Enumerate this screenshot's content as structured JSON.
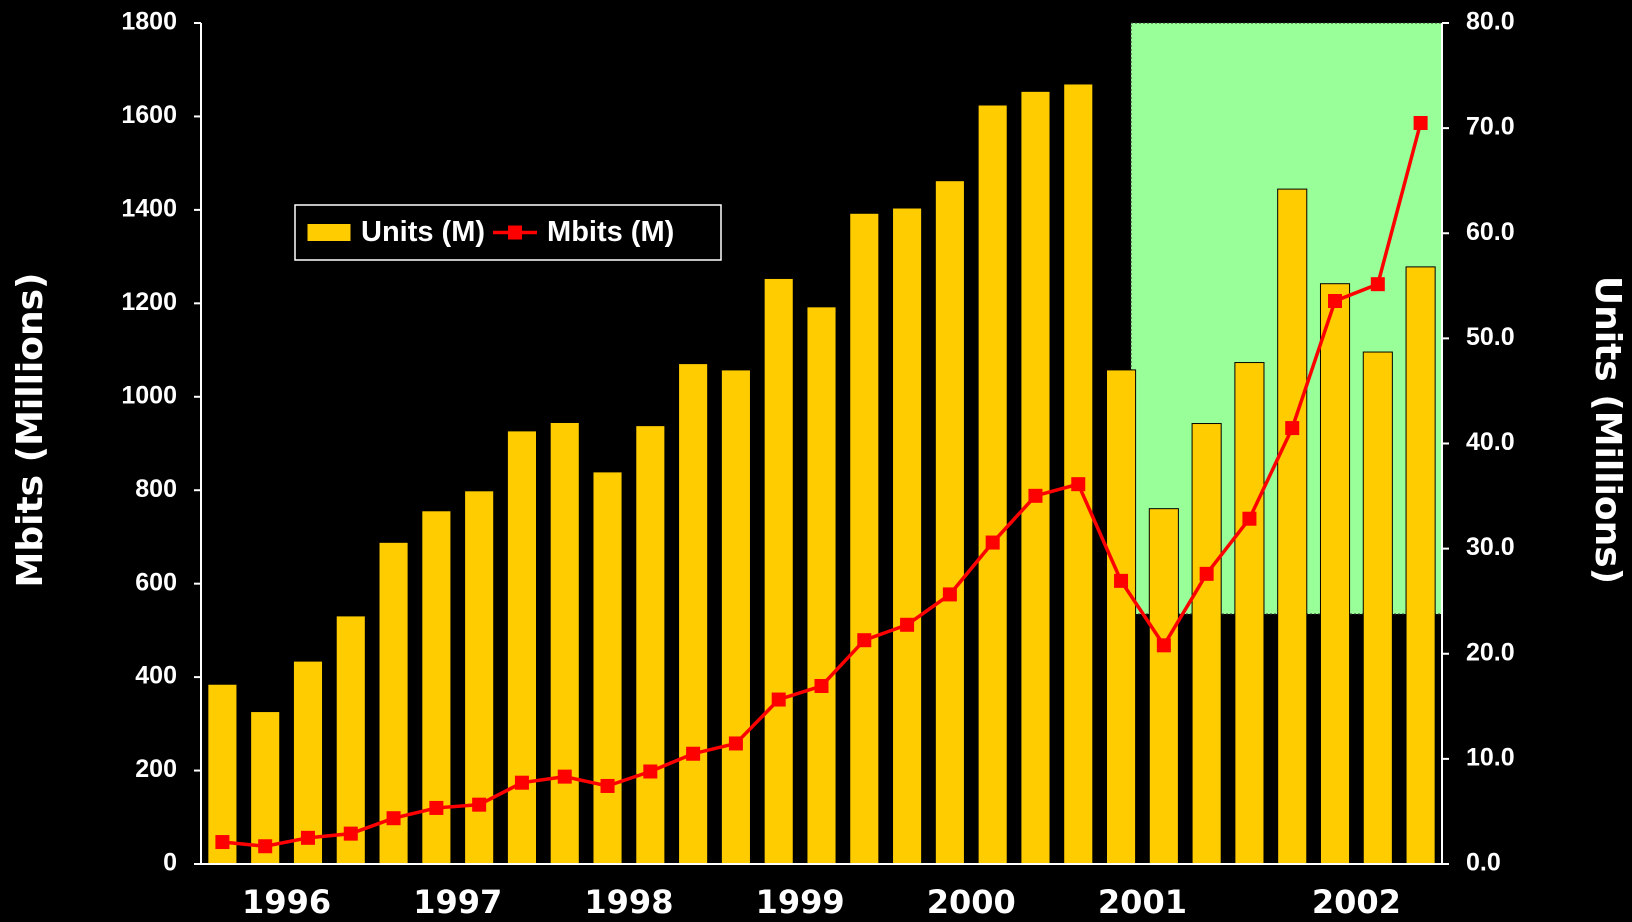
{
  "chart_data": {
    "type": "bar_line",
    "categories": [
      null,
      "1996",
      null,
      null,
      null,
      "1997",
      null,
      null,
      null,
      "1998",
      null,
      null,
      null,
      "1999",
      null,
      null,
      null,
      "2000",
      null,
      null,
      null,
      "2001",
      null,
      null,
      null,
      null,
      "2002",
      null,
      null
    ],
    "series": [
      {
        "name": "Units (M)",
        "type": "bar",
        "axis": "y2",
        "color": "#ffcc00",
        "values": [
          17.1,
          14.5,
          19.3,
          23.6,
          30.6,
          33.6,
          35.5,
          41.2,
          42.0,
          37.3,
          41.7,
          47.6,
          47.0,
          55.7,
          53.0,
          61.9,
          62.4,
          65.0,
          72.2,
          73.5,
          74.2,
          47.0,
          33.8,
          41.9,
          47.7,
          64.2,
          55.2,
          48.7,
          56.8
        ]
      },
      {
        "name": "Mbits (M)",
        "type": "line",
        "axis": "y",
        "color": "#ff0000",
        "values": [
          47,
          38,
          56,
          65,
          98,
          120,
          127,
          174,
          187,
          167,
          198,
          236,
          258,
          352,
          381,
          479,
          512,
          577,
          688,
          788,
          813,
          606,
          468,
          621,
          739,
          933,
          1205,
          1241,
          1586
        ]
      }
    ],
    "y_label": "Mbits (Millions)",
    "y2_label": "Units (Millions)",
    "ylim": [
      0,
      1800
    ],
    "yticks": [
      0,
      200,
      400,
      600,
      800,
      1000,
      1200,
      1400,
      1600,
      1800
    ],
    "y2lim": [
      0,
      80
    ],
    "y2ticks": [
      {
        "value": 0,
        "label": "0.0"
      },
      {
        "value": 10,
        "label": "10.0"
      },
      {
        "value": 20,
        "label": "20.0"
      },
      {
        "value": 30,
        "label": "30.0"
      },
      {
        "value": 40,
        "label": "40.0"
      },
      {
        "value": 50,
        "label": "50.0"
      },
      {
        "value": 60,
        "label": "60.0"
      },
      {
        "value": 70,
        "label": "70.0"
      },
      {
        "value": 80,
        "label": "80.0"
      }
    ],
    "legend": "upper left"
  }
}
